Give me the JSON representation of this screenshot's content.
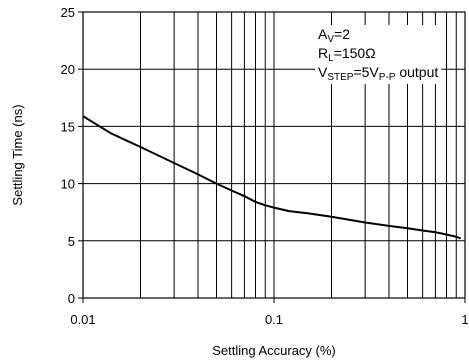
{
  "chart_data": {
    "type": "line",
    "title": "",
    "xlabel": "Settling Accuracy (%)",
    "ylabel": "Settling Time (ns)",
    "xscale": "log",
    "xlim": [
      0.01,
      1
    ],
    "ylim": [
      0,
      25
    ],
    "grid": true,
    "x_ticks": [
      {
        "value": 0.01,
        "label": "0.01"
      },
      {
        "value": 0.1,
        "label": "0.1"
      },
      {
        "value": 1,
        "label": "1"
      }
    ],
    "y_ticks": [
      {
        "value": 0,
        "label": "0"
      },
      {
        "value": 5,
        "label": "5"
      },
      {
        "value": 10,
        "label": "10"
      },
      {
        "value": 15,
        "label": "15"
      },
      {
        "value": 20,
        "label": "20"
      },
      {
        "value": 25,
        "label": "25"
      }
    ],
    "series": [
      {
        "color": "#000000",
        "x": [
          0.01,
          0.014,
          0.02,
          0.03,
          0.04,
          0.05,
          0.06,
          0.07,
          0.08,
          0.09,
          0.1,
          0.12,
          0.15,
          0.2,
          0.3,
          0.4,
          0.5,
          0.6,
          0.7,
          0.8,
          0.9,
          0.95
        ],
        "y": [
          15.9,
          14.4,
          13.2,
          11.8,
          10.8,
          10.0,
          9.4,
          8.9,
          8.4,
          8.1,
          7.9,
          7.6,
          7.4,
          7.1,
          6.6,
          6.3,
          6.1,
          5.9,
          5.75,
          5.55,
          5.35,
          5.2
        ]
      }
    ],
    "annotation": {
      "line1_main": "A",
      "line1_sub": "V",
      "line1_rest": "=2",
      "line2_main": "R",
      "line2_sub": "L",
      "line2_rest": "=150Ω",
      "line3_main": "V",
      "line3_sub": "STEP",
      "line3_mid": "=5V",
      "line3_sub2": "P-P",
      "line3_rest": " output"
    }
  }
}
